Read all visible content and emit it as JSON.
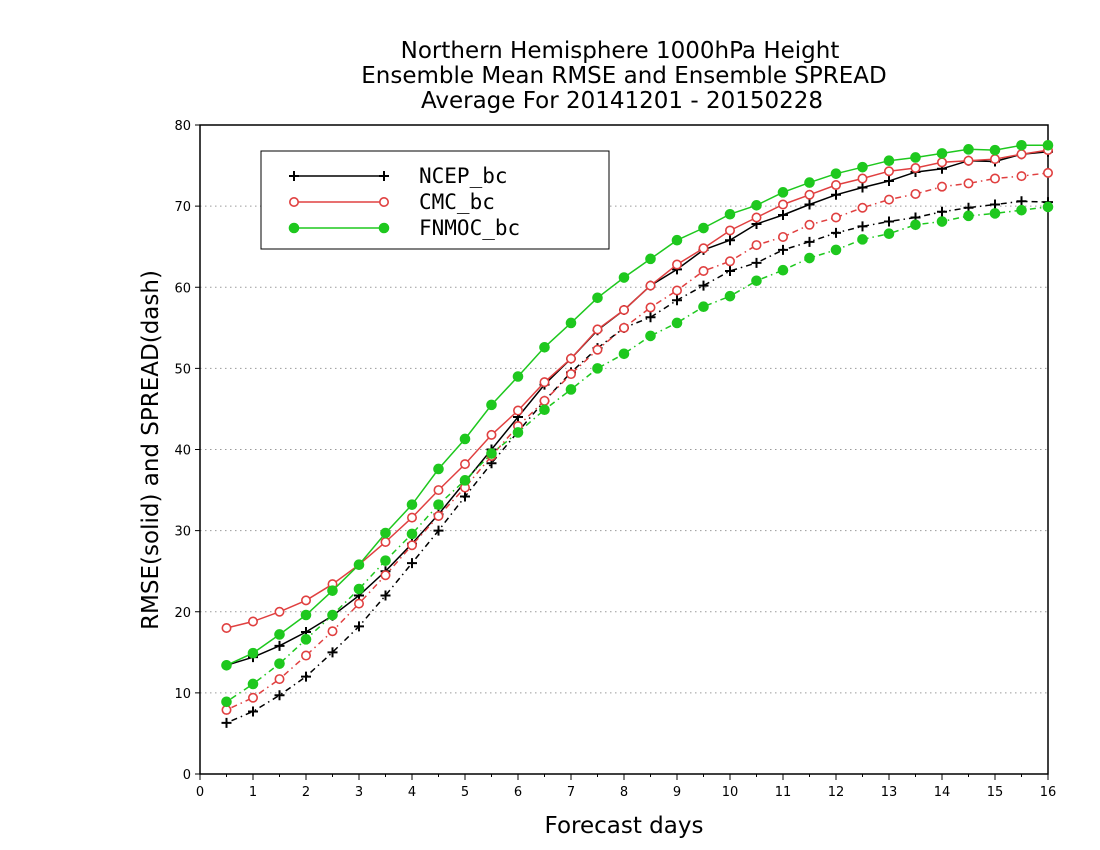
{
  "chart_data": {
    "type": "line",
    "title": [
      "Northern Hemisphere 1000hPa Height",
      "Ensemble Mean RMSE and Ensemble SPREAD",
      "Average For 20141201 - 20150228"
    ],
    "xlabel": "Forecast days",
    "ylabel": "RMSE(solid) and SPREAD(dash)",
    "xlim": [
      0,
      16
    ],
    "ylim": [
      0,
      80
    ],
    "x_ticks": [
      "0",
      "1",
      "2",
      "3",
      "4",
      "5",
      "6",
      "7",
      "8",
      "9",
      "10",
      "11",
      "12",
      "13",
      "14",
      "15",
      "16"
    ],
    "y_ticks": [
      "0",
      "10",
      "20",
      "30",
      "40",
      "50",
      "60",
      "70",
      "80"
    ],
    "grid": "horizontal dotted",
    "legend_position": "top-left",
    "x": [
      0.5,
      1,
      1.5,
      2,
      2.5,
      3,
      3.5,
      4,
      4.5,
      5,
      5.5,
      6,
      6.5,
      7,
      7.5,
      8,
      8.5,
      9,
      9.5,
      10,
      10.5,
      11,
      11.5,
      12,
      12.5,
      13,
      13.5,
      14,
      14.5,
      15,
      15.5,
      16
    ],
    "series": [
      {
        "name": "NCEP_bc",
        "color": "#000000",
        "marker": "plus",
        "rmse": [
          13.4,
          14.4,
          15.8,
          17.5,
          19.5,
          22.0,
          25.0,
          28.4,
          32.0,
          36.0,
          40.0,
          44.0,
          48.0,
          51.2,
          54.7,
          57.2,
          60.2,
          62.2,
          64.6,
          65.8,
          67.8,
          68.9,
          70.2,
          71.4,
          72.3,
          73.1,
          74.2,
          74.6,
          75.6,
          75.5,
          76.4,
          76.7
        ],
        "spread": [
          6.3,
          7.7,
          9.7,
          12.0,
          15.0,
          18.2,
          22.0,
          26.0,
          30.0,
          34.2,
          38.3,
          42.2,
          46.0,
          49.5,
          52.5,
          55.0,
          56.3,
          58.4,
          60.2,
          62.0,
          63.0,
          64.6,
          65.6,
          66.7,
          67.5,
          68.1,
          68.6,
          69.3,
          69.8,
          70.2,
          70.6,
          70.5
        ]
      },
      {
        "name": "CMC_bc",
        "color": "#e04040",
        "marker": "open-circle",
        "rmse": [
          18.0,
          18.8,
          20.0,
          21.4,
          23.4,
          25.8,
          28.6,
          31.6,
          35.0,
          38.2,
          41.8,
          44.8,
          48.3,
          51.2,
          54.8,
          57.2,
          60.2,
          62.8,
          64.8,
          67.0,
          68.6,
          70.2,
          71.4,
          72.6,
          73.4,
          74.3,
          74.7,
          75.4,
          75.6,
          75.8,
          76.4,
          76.9
        ],
        "spread": [
          7.9,
          9.4,
          11.7,
          14.6,
          17.6,
          21.0,
          24.5,
          28.2,
          31.8,
          35.3,
          39.2,
          42.9,
          46.0,
          49.3,
          52.3,
          55.0,
          57.5,
          59.6,
          62.0,
          63.2,
          65.2,
          66.2,
          67.7,
          68.6,
          69.8,
          70.8,
          71.5,
          72.4,
          72.8,
          73.4,
          73.7,
          74.1
        ]
      },
      {
        "name": "FNMOC_bc",
        "color": "#1ec81e",
        "marker": "filled-circle",
        "rmse": [
          13.4,
          14.9,
          17.2,
          19.6,
          22.6,
          25.8,
          29.7,
          33.2,
          37.6,
          41.3,
          45.5,
          49.0,
          52.6,
          55.6,
          58.7,
          61.2,
          63.5,
          65.8,
          67.3,
          69.0,
          70.1,
          71.7,
          72.9,
          74.0,
          74.8,
          75.6,
          76.0,
          76.5,
          77.0,
          76.9,
          77.5,
          77.5
        ],
        "spread": [
          8.9,
          11.1,
          13.6,
          16.6,
          19.6,
          22.8,
          26.3,
          29.6,
          33.2,
          36.2,
          39.5,
          42.1,
          44.9,
          47.4,
          50.0,
          51.8,
          54.0,
          55.6,
          57.6,
          58.9,
          60.8,
          62.1,
          63.6,
          64.6,
          65.9,
          66.6,
          67.7,
          68.1,
          68.8,
          69.1,
          69.5,
          69.9
        ]
      }
    ]
  }
}
